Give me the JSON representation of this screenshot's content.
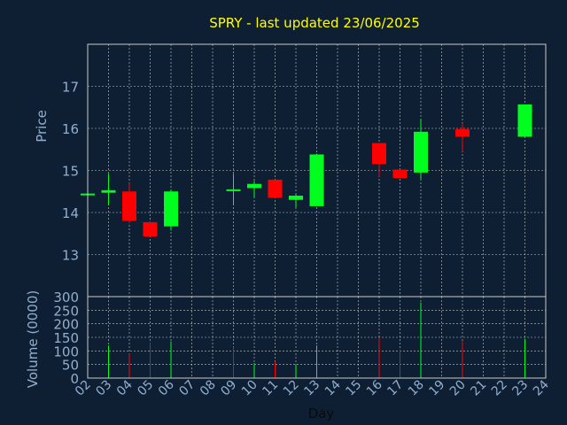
{
  "chart_data": [
    {
      "type": "candlestick",
      "title": "SPRY - last updated 23/06/2025",
      "ylabel": "Price",
      "ylim": [
        12.0,
        18.0
      ],
      "yticks": [
        13,
        14,
        15,
        16,
        17
      ],
      "xlim": [
        2,
        24
      ],
      "grid": true,
      "colors": {
        "up": "#00ff1e",
        "down": "#ff0000",
        "title": "#ffff00",
        "axis_text": "#8fb0d0",
        "background": "#0f1f33",
        "plot_border": "#c8c8c8",
        "grid": "#c8c8c8"
      },
      "candles": [
        {
          "day": 2,
          "open": 14.45,
          "high": 14.45,
          "low": 14.45,
          "close": 14.45
        },
        {
          "day": 3,
          "open": 14.47,
          "high": 14.92,
          "low": 14.18,
          "close": 14.53
        },
        {
          "day": 4,
          "open": 14.5,
          "high": 14.7,
          "low": 13.75,
          "close": 13.8
        },
        {
          "day": 5,
          "open": 13.77,
          "high": 13.8,
          "low": 13.42,
          "close": 13.43
        },
        {
          "day": 6,
          "open": 13.67,
          "high": 14.55,
          "low": 13.57,
          "close": 14.5
        },
        {
          "day": 9,
          "open": 14.55,
          "high": 14.92,
          "low": 14.17,
          "close": 14.55
        },
        {
          "day": 10,
          "open": 14.58,
          "high": 14.75,
          "low": 14.35,
          "close": 14.68
        },
        {
          "day": 11,
          "open": 14.78,
          "high": 14.78,
          "low": 14.35,
          "close": 14.35
        },
        {
          "day": 12,
          "open": 14.3,
          "high": 14.43,
          "low": 14.12,
          "close": 14.4
        },
        {
          "day": 13,
          "open": 14.15,
          "high": 15.4,
          "low": 14.15,
          "close": 15.38
        },
        {
          "day": 16,
          "open": 15.65,
          "high": 15.65,
          "low": 14.85,
          "close": 15.15
        },
        {
          "day": 17,
          "open": 15.02,
          "high": 15.02,
          "low": 14.82,
          "close": 14.82
        },
        {
          "day": 18,
          "open": 14.95,
          "high": 16.22,
          "low": 14.8,
          "close": 15.92
        },
        {
          "day": 20,
          "open": 15.98,
          "high": 16.12,
          "low": 15.45,
          "close": 15.8
        },
        {
          "day": 23,
          "open": 15.8,
          "high": 16.57,
          "low": 15.8,
          "close": 16.57
        }
      ]
    },
    {
      "type": "bar",
      "ylabel": "Volume (0000)",
      "xlabel": "Day",
      "ylim": [
        0,
        300
      ],
      "yticks": [
        0,
        50,
        100,
        150,
        200,
        250,
        300
      ],
      "xticks": [
        "02",
        "03",
        "04",
        "05",
        "06",
        "07",
        "08",
        "09",
        "10",
        "11",
        "12",
        "13",
        "14",
        "15",
        "16",
        "17",
        "18",
        "19",
        "20",
        "21",
        "22",
        "23",
        "24"
      ],
      "grid": true,
      "volumes": [
        {
          "day": 3,
          "value": 120,
          "dir": "up"
        },
        {
          "day": 4,
          "value": 90,
          "dir": "down"
        },
        {
          "day": 5,
          "value": 130,
          "dir": "down"
        },
        {
          "day": 6,
          "value": 135,
          "dir": "up"
        },
        {
          "day": 9,
          "value": 115,
          "dir": "down"
        },
        {
          "day": 10,
          "value": 55,
          "dir": "up"
        },
        {
          "day": 11,
          "value": 60,
          "dir": "down"
        },
        {
          "day": 12,
          "value": 50,
          "dir": "up"
        },
        {
          "day": 13,
          "value": 120,
          "dir": "up"
        },
        {
          "day": 16,
          "value": 150,
          "dir": "down"
        },
        {
          "day": 17,
          "value": 105,
          "dir": "down"
        },
        {
          "day": 18,
          "value": 278,
          "dir": "up"
        },
        {
          "day": 20,
          "value": 135,
          "dir": "down"
        },
        {
          "day": 23,
          "value": 145,
          "dir": "up"
        }
      ]
    }
  ]
}
